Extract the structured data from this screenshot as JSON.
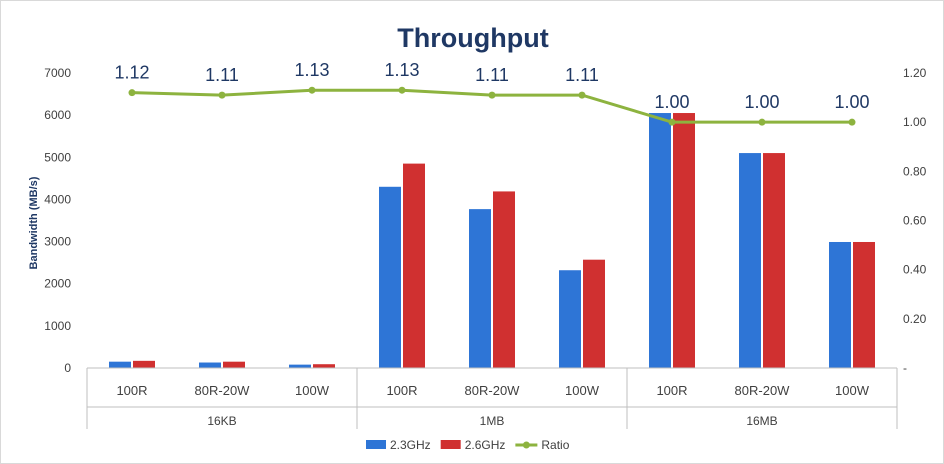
{
  "chart_data": {
    "type": "bar",
    "title": "Throughput",
    "ylabel": "Bandwidth (MB/s)",
    "ylim": [
      0,
      7000
    ],
    "yticks": [
      0,
      1000,
      2000,
      3000,
      4000,
      5000,
      6000,
      7000
    ],
    "y2lim": [
      0,
      1.2
    ],
    "y2ticks": [
      "-",
      "0.20",
      "0.40",
      "0.60",
      "0.80",
      "1.00",
      "1.20"
    ],
    "groups": [
      {
        "label": "16KB",
        "categories": [
          "100R",
          "80R-20W",
          "100W"
        ]
      },
      {
        "label": "1MB",
        "categories": [
          "100R",
          "80R-20W",
          "100W"
        ]
      },
      {
        "label": "16MB",
        "categories": [
          "100R",
          "80R-20W",
          "100W"
        ]
      }
    ],
    "series": [
      {
        "name": "2.3GHz",
        "type": "bar",
        "color": "#2e75d6",
        "values": [
          150,
          130,
          80,
          4300,
          3770,
          2320,
          6050,
          5100,
          2990
        ]
      },
      {
        "name": "2.6GHz",
        "type": "bar",
        "color": "#d03030",
        "values": [
          170,
          150,
          90,
          4850,
          4190,
          2570,
          6050,
          5100,
          2990
        ]
      },
      {
        "name": "Ratio",
        "type": "line",
        "axis": "secondary",
        "color": "#8db33f",
        "values": [
          1.12,
          1.11,
          1.13,
          1.13,
          1.11,
          1.11,
          1.0,
          1.0,
          1.0
        ],
        "labels": [
          "1.12",
          "1.11",
          "1.13",
          "1.13",
          "1.11",
          "1.11",
          "1.00",
          "1.00",
          "1.00"
        ]
      }
    ],
    "legend_position": "bottom",
    "grid": false
  }
}
